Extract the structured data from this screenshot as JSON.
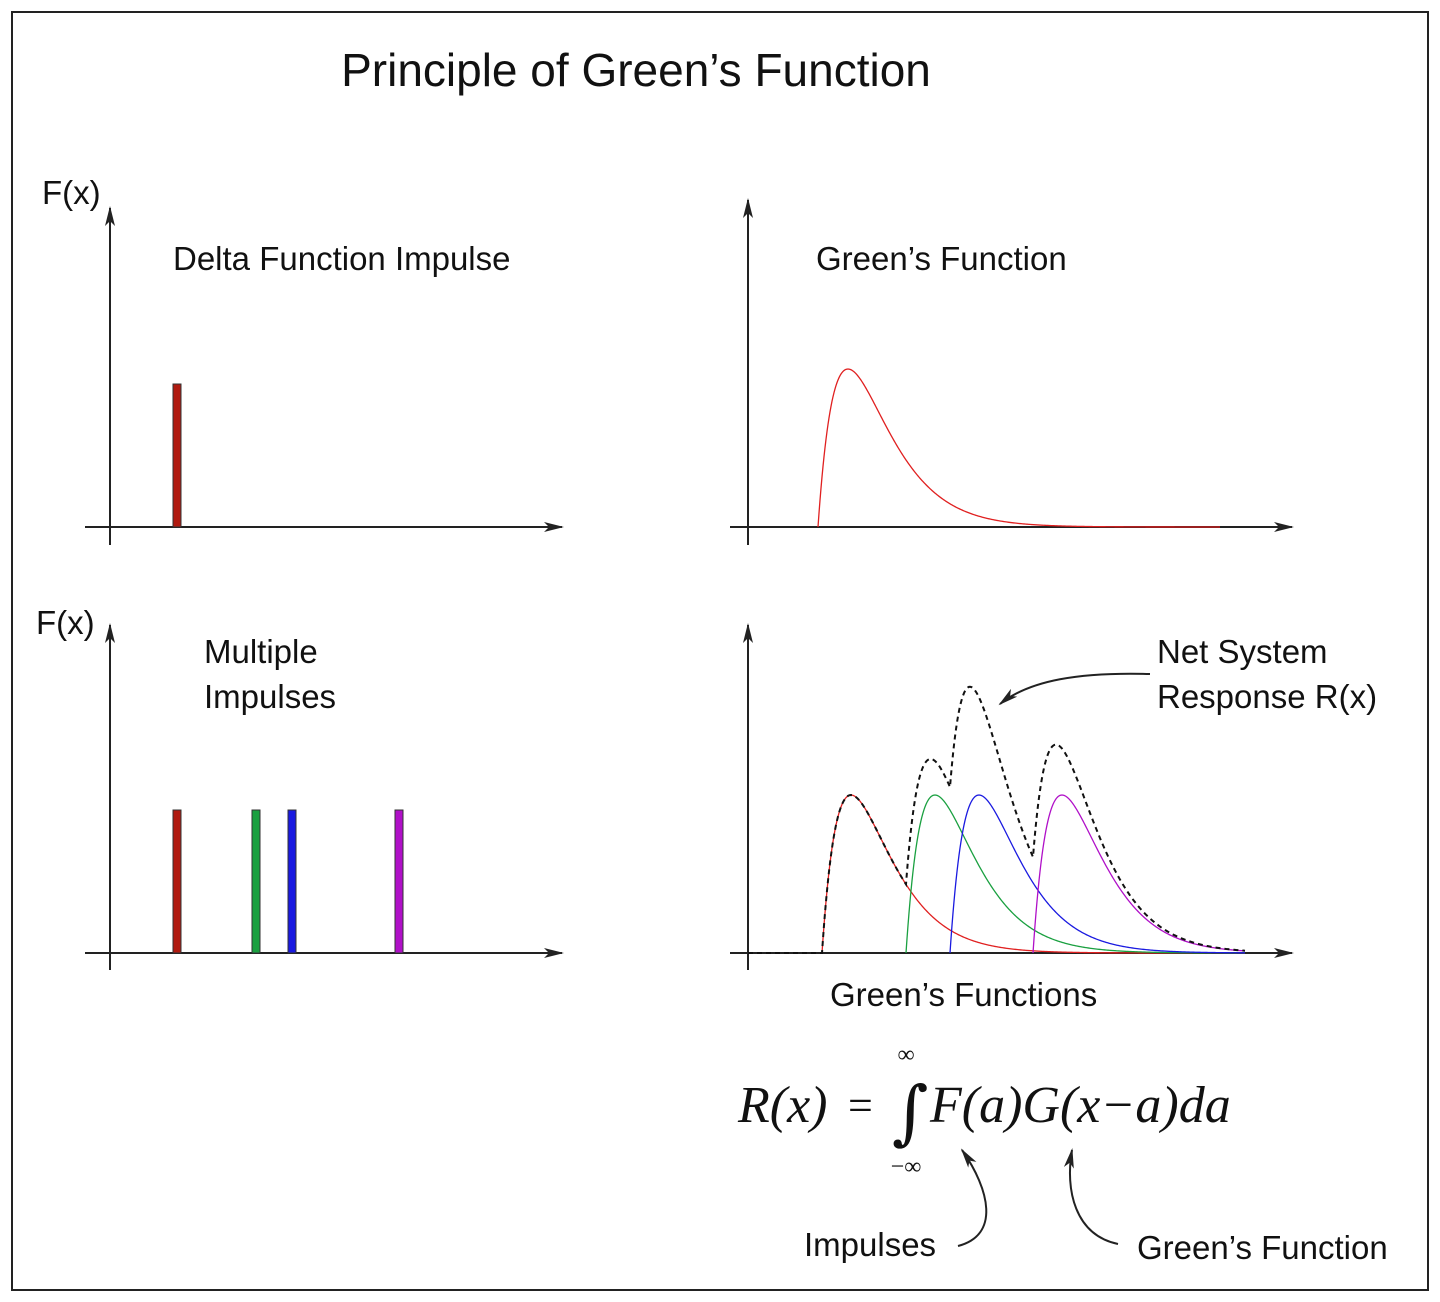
{
  "header": {
    "title": "Principle of Green’s Function"
  },
  "panels": [
    {
      "axis_label": "F(x)",
      "label": "Delta Function Impulse"
    },
    {
      "label": "Green’s Function"
    },
    {
      "axis_label": "F(x)",
      "label_lines": [
        "Multiple",
        "Impulses"
      ]
    },
    {
      "label_lines": [
        "Net System",
        "Response R(x)"
      ],
      "caption": "Green’s Functions"
    }
  ],
  "formula": {
    "lhs": "R(x)",
    "equals": "=",
    "integral": "∫",
    "upper": "∞",
    "lower": "−∞",
    "integrand": "F(a)G(x−a)da"
  },
  "annotations": {
    "impulses": "Impulses",
    "greens_function": "Green’s Function"
  }
}
